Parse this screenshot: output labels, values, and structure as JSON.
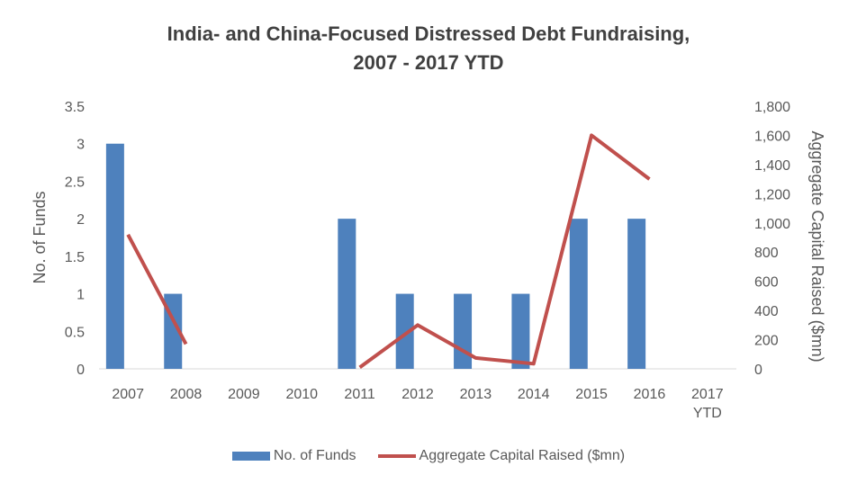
{
  "chart_data": {
    "type": "bar",
    "title_line1": "India- and China-Focused Distressed Debt Fundraising,",
    "title_line2": "2007 - 2017 YTD",
    "categories": [
      [
        "2007"
      ],
      [
        "2008"
      ],
      [
        "2009"
      ],
      [
        "2010"
      ],
      [
        "2011"
      ],
      [
        "2012"
      ],
      [
        "2013"
      ],
      [
        "2014"
      ],
      [
        "2015"
      ],
      [
        "2016"
      ],
      [
        "2017",
        "YTD"
      ]
    ],
    "ylabel": "No. of Funds",
    "y2label": "Aggregate Capital Raised ($mn)",
    "ylim": [
      0,
      3.5
    ],
    "y2lim": [
      0,
      1800
    ],
    "yticks": [
      "0",
      "0.5",
      "1",
      "1.5",
      "2",
      "2.5",
      "3",
      "3.5"
    ],
    "y2ticks": [
      "0",
      "200",
      "400",
      "600",
      "800",
      "1,000",
      "1,200",
      "1,400",
      "1,600",
      "1,800"
    ],
    "series": [
      {
        "name": "No. of Funds",
        "kind": "bar",
        "axis": "left",
        "color": "#4e81bd",
        "values": [
          3,
          1,
          0,
          0,
          2,
          1,
          1,
          1,
          2,
          2,
          0
        ]
      },
      {
        "name": "Aggregate Capital Raised ($mn)",
        "kind": "line",
        "axis": "right",
        "color": "#c0504d",
        "values": [
          920,
          170,
          null,
          null,
          10,
          300,
          75,
          35,
          1600,
          1300,
          null
        ]
      }
    ],
    "legend_position": "bottom",
    "grid": false
  }
}
